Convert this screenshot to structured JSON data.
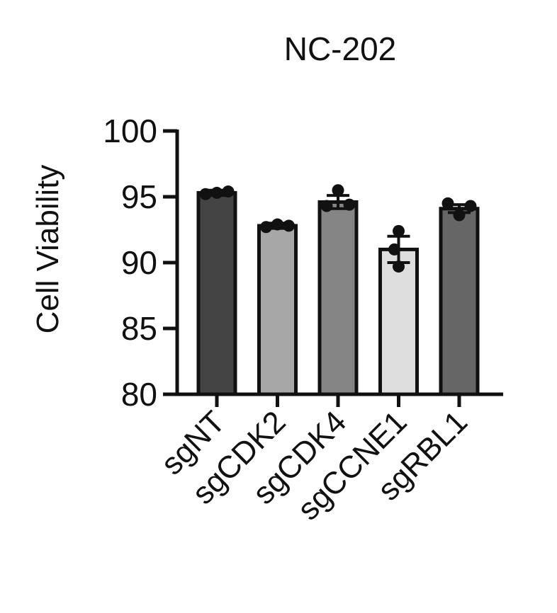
{
  "chart_data": {
    "type": "bar",
    "title": "NC-202",
    "xlabel": "",
    "ylabel": "Cell Viability",
    "ylim": [
      80,
      100
    ],
    "yticks": [
      80,
      85,
      90,
      95,
      100
    ],
    "grid": false,
    "categories": [
      "sgNT",
      "sgCDK2",
      "sgCDK4",
      "sgCCNE1",
      "sgRBL1"
    ],
    "values": [
      95.3,
      92.8,
      94.6,
      91.0,
      94.1
    ],
    "errors": [
      0.2,
      0.2,
      0.5,
      1.0,
      0.3
    ],
    "points": [
      [
        95.2,
        95.3,
        95.4
      ],
      [
        92.7,
        92.9,
        92.8
      ],
      [
        94.3,
        95.5,
        94.4
      ],
      [
        92.4,
        91.0,
        89.7
      ],
      [
        94.5,
        93.6,
        94.3
      ]
    ],
    "bar_colors": [
      "#444444",
      "#a7a7a7",
      "#858585",
      "#dedede",
      "#666666"
    ]
  }
}
